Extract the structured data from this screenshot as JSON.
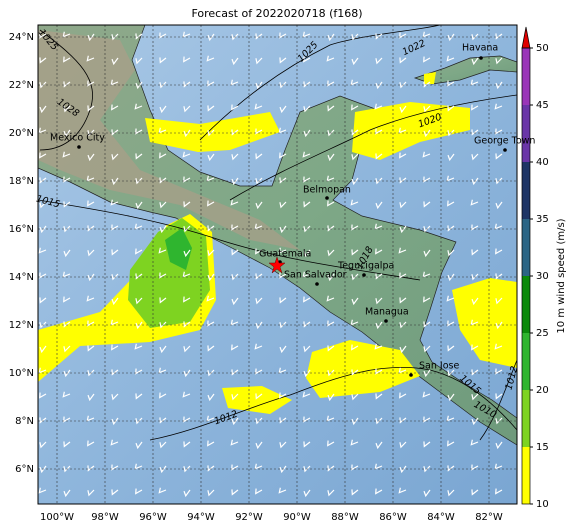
{
  "title": "Forecast of 2022020718 (f168)",
  "map": {
    "lon_ticks": [
      "100°W",
      "98°W",
      "96°W",
      "94°W",
      "92°W",
      "90°W",
      "88°W",
      "86°W",
      "84°W",
      "82°W"
    ],
    "lat_ticks": [
      "24°N",
      "22°N",
      "20°N",
      "18°N",
      "16°N",
      "14°N",
      "12°N",
      "10°N",
      "8°N",
      "6°N"
    ],
    "cities": [
      "Havana",
      "Mexico City",
      "George Town",
      "Belmopan",
      "Guatemala",
      "Tegucigalpa",
      "San Salvador",
      "Managua",
      "San Jose"
    ],
    "isobar_labels": [
      "1025",
      "1025",
      "1022",
      "1028",
      "1020",
      "1015",
      "1018",
      "1012",
      "1015",
      "1010",
      "1012"
    ]
  },
  "colorbar": {
    "label": "10 m wind speed (m/s)",
    "ticks": [
      10,
      15,
      20,
      25,
      30,
      35,
      40,
      45,
      50
    ],
    "colors": [
      "#ffff00",
      "#7ed321",
      "#2fb52f",
      "#0b8a0b",
      "#2b6585",
      "#1e3566",
      "#6a36a8",
      "#9a36b8"
    ],
    "extend_color": "#e00000"
  }
}
